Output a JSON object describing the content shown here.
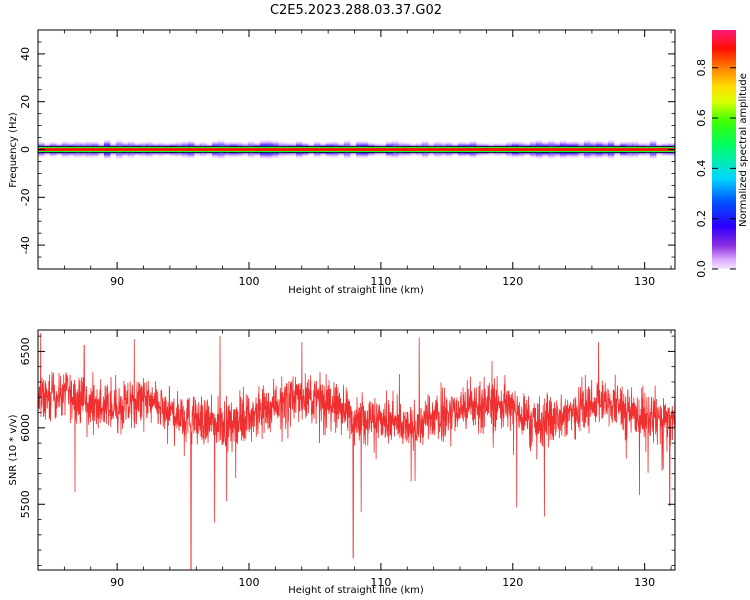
{
  "title": "C2E5.2023.288.03.37.G02",
  "chart_data": [
    {
      "type": "heatmap",
      "xlabel": "Height of straight line (km)",
      "ylabel": "Frequency (Hz)",
      "xlim": [
        84,
        132.3
      ],
      "ylim": [
        -50,
        50
      ],
      "xticks": [
        90,
        100,
        110,
        120,
        130
      ],
      "yticks": [
        -40,
        -20,
        0,
        20,
        40
      ],
      "description_of_content": "",
      "band": {
        "center_hz": 0,
        "core_halfwidth_hz": 0.6,
        "glow_halfwidth_hz": 3.5
      },
      "colorbar": {
        "label": "Normalized spectral amplitude",
        "range": [
          0,
          0.95
        ],
        "ticks": [
          0.0,
          0.2,
          0.4,
          0.6,
          0.8
        ],
        "tick_labels": [
          "0.0",
          "0.2",
          "0.4",
          "0.6",
          "0.8"
        ],
        "colormap": "hsv-rainbow"
      }
    },
    {
      "type": "line",
      "xlabel": "Height of straight line (km)",
      "ylabel": "SNR (10 * v/v)",
      "xlim": [
        84,
        132.3
      ],
      "ylim": [
        5070,
        6640
      ],
      "xticks": [
        90,
        100,
        110,
        120,
        130
      ],
      "yticks": [
        5500,
        6000,
        6500
      ],
      "color": "#f03030",
      "baseline": [
        [
          84,
          6170
        ],
        [
          86,
          6230
        ],
        [
          88,
          6150
        ],
        [
          90,
          6120
        ],
        [
          92,
          6180
        ],
        [
          94,
          6100
        ],
        [
          96,
          6050
        ],
        [
          98,
          6020
        ],
        [
          100,
          6080
        ],
        [
          102,
          6160
        ],
        [
          104,
          6210
        ],
        [
          106,
          6170
        ],
        [
          108,
          6080
        ],
        [
          110,
          6050
        ],
        [
          112,
          6000
        ],
        [
          114,
          6060
        ],
        [
          116,
          6120
        ],
        [
          118,
          6170
        ],
        [
          120,
          6130
        ],
        [
          122,
          6020
        ],
        [
          124,
          6080
        ],
        [
          126,
          6180
        ],
        [
          128,
          6140
        ],
        [
          130,
          6060
        ],
        [
          132.3,
          6050
        ]
      ],
      "noise_amplitude": 120,
      "dips": [
        [
          95.6,
          5070
        ],
        [
          97.4,
          5380
        ],
        [
          107.9,
          5150
        ],
        [
          120.3,
          5480
        ],
        [
          122.4,
          5420
        ],
        [
          112.3,
          5650
        ],
        [
          131.9,
          5490
        ],
        [
          129.6,
          5560
        ],
        [
          108.5,
          5450
        ],
        [
          98.3,
          5520
        ],
        [
          86.8,
          5580
        ]
      ],
      "peaks": [
        [
          97.8,
          6600
        ],
        [
          84.2,
          6620
        ],
        [
          112.9,
          6590
        ],
        [
          104.0,
          6560
        ],
        [
          126.5,
          6560
        ],
        [
          91.3,
          6580
        ],
        [
          87.5,
          6540
        ]
      ]
    }
  ]
}
